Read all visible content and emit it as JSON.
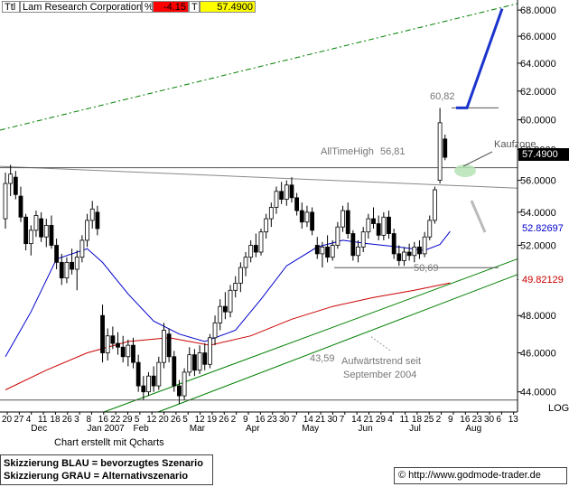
{
  "header": {
    "ticker": "Ttl",
    "name": "Lam Research Corporation",
    "pct_symbol": "%",
    "change": "-4.15",
    "t_symbol": "T",
    "last": "57.4900",
    "colors": {
      "change_bg": "#ff0000",
      "last_bg": "#ffff00"
    }
  },
  "footer": {
    "credit": "Chart erstellt mit Qcharts",
    "legend_line1": "Skizzierung BLAU = bevorzugtes Szenario",
    "legend_line2": "Skizzierung GRAU = Alternativszenario",
    "url": "© http://www.godmode-trader.de",
    "scale_mode": "LOG"
  },
  "price_tags": {
    "last": "57.4900",
    "ma_blue": "52.82697",
    "ma_red": "49.82129"
  },
  "chart_data": {
    "type": "candlestick",
    "title": "Lam Research Corporation",
    "y_scale": "log",
    "ylim": [
      43.0,
      68.5
    ],
    "y_ticks": [
      "68.0000",
      "66.0000",
      "64.0000",
      "62.0000",
      "60.0000",
      "58.0000",
      "56.0000",
      "54.0000",
      "52.0000",
      "50.0000",
      "48.0000",
      "46.0000",
      "44.0000"
    ],
    "x_day_labels": [
      "20",
      "27",
      "4",
      "11",
      "18",
      "26",
      "3",
      "8",
      "16",
      "22",
      "29",
      "5",
      "12",
      "20",
      "26",
      "5",
      "12",
      "19",
      "26",
      "2",
      "9",
      "16",
      "23",
      "30",
      "7",
      "14",
      "21",
      "30",
      "7",
      "14",
      "21",
      "29",
      "4",
      "11",
      "18",
      "25",
      "2",
      "9",
      "16",
      "23",
      "30",
      "6",
      "13"
    ],
    "x_month_labels": [
      "Dec",
      "Jan 2007",
      "Feb",
      "Mar",
      "Apr",
      "May",
      "Jun",
      "Jul",
      "Aug"
    ],
    "x_month_positions": [
      5,
      16,
      25,
      36,
      47,
      58,
      69,
      79,
      90
    ],
    "candles": [
      {
        "o": 53.6,
        "h": 56.5,
        "l": 53.0,
        "c": 55.8
      },
      {
        "o": 55.8,
        "h": 57.0,
        "l": 55.0,
        "c": 56.4
      },
      {
        "o": 56.2,
        "h": 56.6,
        "l": 54.8,
        "c": 55.1
      },
      {
        "o": 55.0,
        "h": 55.6,
        "l": 53.4,
        "c": 53.7
      },
      {
        "o": 53.7,
        "h": 53.9,
        "l": 51.7,
        "c": 52.1
      },
      {
        "o": 52.1,
        "h": 53.2,
        "l": 51.4,
        "c": 52.9
      },
      {
        "o": 52.9,
        "h": 54.1,
        "l": 52.5,
        "c": 53.8
      },
      {
        "o": 53.6,
        "h": 54.0,
        "l": 52.2,
        "c": 52.5
      },
      {
        "o": 52.5,
        "h": 53.6,
        "l": 51.9,
        "c": 53.2
      },
      {
        "o": 53.2,
        "h": 53.8,
        "l": 51.8,
        "c": 52.0
      },
      {
        "o": 52.0,
        "h": 52.4,
        "l": 50.6,
        "c": 51.0
      },
      {
        "o": 51.0,
        "h": 51.5,
        "l": 49.7,
        "c": 50.1
      },
      {
        "o": 50.1,
        "h": 51.3,
        "l": 49.8,
        "c": 51.0
      },
      {
        "o": 51.0,
        "h": 51.8,
        "l": 50.3,
        "c": 50.6
      },
      {
        "o": 50.6,
        "h": 51.7,
        "l": 49.4,
        "c": 51.3
      },
      {
        "o": 51.3,
        "h": 52.6,
        "l": 51.0,
        "c": 52.3
      },
      {
        "o": 52.3,
        "h": 53.9,
        "l": 51.9,
        "c": 53.5
      },
      {
        "o": 53.5,
        "h": 54.7,
        "l": 53.0,
        "c": 54.2
      },
      {
        "o": 54.0,
        "h": 54.4,
        "l": 52.6,
        "c": 53.0
      },
      {
        "o": 48.0,
        "h": 48.6,
        "l": 45.5,
        "c": 46.0
      },
      {
        "o": 46.0,
        "h": 47.3,
        "l": 45.6,
        "c": 46.9
      },
      {
        "o": 46.9,
        "h": 47.4,
        "l": 46.2,
        "c": 46.5
      },
      {
        "o": 46.5,
        "h": 47.1,
        "l": 45.9,
        "c": 46.3
      },
      {
        "o": 46.3,
        "h": 46.9,
        "l": 45.5,
        "c": 45.8
      },
      {
        "o": 45.8,
        "h": 46.7,
        "l": 45.3,
        "c": 46.4
      },
      {
        "o": 46.4,
        "h": 46.8,
        "l": 45.2,
        "c": 45.5
      },
      {
        "o": 45.5,
        "h": 45.9,
        "l": 44.0,
        "c": 44.3
      },
      {
        "o": 44.3,
        "h": 44.8,
        "l": 43.6,
        "c": 44.0
      },
      {
        "o": 44.0,
        "h": 45.0,
        "l": 43.8,
        "c": 44.8
      },
      {
        "o": 44.8,
        "h": 45.3,
        "l": 44.0,
        "c": 44.3
      },
      {
        "o": 44.3,
        "h": 45.8,
        "l": 44.1,
        "c": 45.5
      },
      {
        "o": 45.5,
        "h": 47.6,
        "l": 45.2,
        "c": 47.2
      },
      {
        "o": 47.0,
        "h": 47.3,
        "l": 45.5,
        "c": 45.8
      },
      {
        "o": 45.8,
        "h": 46.1,
        "l": 44.0,
        "c": 44.3
      },
      {
        "o": 44.3,
        "h": 44.6,
        "l": 43.4,
        "c": 43.8
      },
      {
        "o": 43.8,
        "h": 45.2,
        "l": 43.6,
        "c": 45.0
      },
      {
        "o": 45.0,
        "h": 46.3,
        "l": 44.8,
        "c": 45.9
      },
      {
        "o": 45.9,
        "h": 46.2,
        "l": 44.8,
        "c": 45.1
      },
      {
        "o": 45.1,
        "h": 46.4,
        "l": 44.9,
        "c": 46.0
      },
      {
        "o": 46.0,
        "h": 46.5,
        "l": 45.1,
        "c": 45.4
      },
      {
        "o": 45.4,
        "h": 47.0,
        "l": 45.2,
        "c": 46.8
      },
      {
        "o": 46.8,
        "h": 48.0,
        "l": 46.4,
        "c": 47.6
      },
      {
        "o": 47.6,
        "h": 48.9,
        "l": 47.2,
        "c": 48.5
      },
      {
        "o": 48.5,
        "h": 49.3,
        "l": 47.8,
        "c": 48.2
      },
      {
        "o": 48.2,
        "h": 49.7,
        "l": 47.9,
        "c": 49.4
      },
      {
        "o": 49.4,
        "h": 50.2,
        "l": 49.0,
        "c": 49.8
      },
      {
        "o": 49.8,
        "h": 51.0,
        "l": 49.3,
        "c": 50.7
      },
      {
        "o": 50.7,
        "h": 51.6,
        "l": 50.2,
        "c": 51.3
      },
      {
        "o": 51.3,
        "h": 52.3,
        "l": 51.0,
        "c": 52.0
      },
      {
        "o": 52.0,
        "h": 52.7,
        "l": 51.3,
        "c": 51.6
      },
      {
        "o": 51.6,
        "h": 53.0,
        "l": 51.4,
        "c": 52.8
      },
      {
        "o": 52.8,
        "h": 53.9,
        "l": 52.4,
        "c": 53.6
      },
      {
        "o": 53.6,
        "h": 54.6,
        "l": 53.1,
        "c": 54.3
      },
      {
        "o": 54.3,
        "h": 55.6,
        "l": 53.9,
        "c": 55.3
      },
      {
        "o": 55.3,
        "h": 55.9,
        "l": 54.5,
        "c": 54.8
      },
      {
        "o": 54.8,
        "h": 56.0,
        "l": 54.4,
        "c": 55.7
      },
      {
        "o": 55.7,
        "h": 56.2,
        "l": 54.6,
        "c": 54.9
      },
      {
        "o": 54.9,
        "h": 55.2,
        "l": 53.8,
        "c": 54.1
      },
      {
        "o": 54.1,
        "h": 54.6,
        "l": 53.0,
        "c": 53.4
      },
      {
        "o": 53.4,
        "h": 54.4,
        "l": 53.1,
        "c": 54.0
      },
      {
        "o": 54.0,
        "h": 54.3,
        "l": 52.6,
        "c": 52.9
      },
      {
        "o": 52.0,
        "h": 52.5,
        "l": 51.2,
        "c": 51.5
      },
      {
        "o": 51.5,
        "h": 52.2,
        "l": 50.7,
        "c": 51.9
      },
      {
        "o": 51.9,
        "h": 52.6,
        "l": 51.0,
        "c": 51.3
      },
      {
        "o": 51.3,
        "h": 52.3,
        "l": 51.1,
        "c": 52.0
      },
      {
        "o": 52.0,
        "h": 53.4,
        "l": 51.8,
        "c": 53.1
      },
      {
        "o": 53.1,
        "h": 54.4,
        "l": 52.8,
        "c": 54.1
      },
      {
        "o": 54.1,
        "h": 54.6,
        "l": 52.4,
        "c": 52.7
      },
      {
        "o": 52.7,
        "h": 52.9,
        "l": 51.1,
        "c": 51.4
      },
      {
        "o": 51.4,
        "h": 52.3,
        "l": 51.0,
        "c": 51.9
      },
      {
        "o": 51.9,
        "h": 53.1,
        "l": 51.6,
        "c": 52.8
      },
      {
        "o": 52.8,
        "h": 53.9,
        "l": 52.4,
        "c": 53.6
      },
      {
        "o": 53.6,
        "h": 54.3,
        "l": 53.0,
        "c": 53.3
      },
      {
        "o": 53.3,
        "h": 53.8,
        "l": 52.3,
        "c": 52.6
      },
      {
        "o": 52.6,
        "h": 54.0,
        "l": 52.3,
        "c": 53.7
      },
      {
        "o": 53.7,
        "h": 54.1,
        "l": 52.4,
        "c": 52.7
      },
      {
        "o": 52.7,
        "h": 53.0,
        "l": 51.2,
        "c": 51.5
      },
      {
        "o": 51.5,
        "h": 52.0,
        "l": 50.8,
        "c": 51.1
      },
      {
        "o": 51.1,
        "h": 51.9,
        "l": 50.8,
        "c": 51.6
      },
      {
        "o": 51.6,
        "h": 52.1,
        "l": 51.1,
        "c": 51.4
      },
      {
        "o": 51.4,
        "h": 52.2,
        "l": 51.0,
        "c": 51.9
      },
      {
        "o": 51.9,
        "h": 52.3,
        "l": 51.2,
        "c": 51.5
      },
      {
        "o": 51.5,
        "h": 52.8,
        "l": 51.3,
        "c": 52.5
      },
      {
        "o": 52.5,
        "h": 53.8,
        "l": 52.3,
        "c": 53.5
      },
      {
        "o": 53.5,
        "h": 55.6,
        "l": 53.3,
        "c": 55.4
      },
      {
        "o": 56.0,
        "h": 60.82,
        "l": 55.8,
        "c": 59.8
      },
      {
        "o": 58.7,
        "h": 59.0,
        "l": 57.3,
        "c": 57.49
      }
    ],
    "ma_blue": {
      "name": "",
      "last_label": "52.82697",
      "points": [
        [
          0,
          45.8
        ],
        [
          5,
          48.2
        ],
        [
          10,
          51.2
        ],
        [
          16,
          51.8
        ],
        [
          19,
          51.0
        ],
        [
          24,
          49.2
        ],
        [
          29,
          47.7
        ],
        [
          34,
          47.0
        ],
        [
          39,
          46.6
        ],
        [
          45,
          47.2
        ],
        [
          50,
          48.9
        ],
        [
          55,
          50.8
        ],
        [
          61,
          51.9
        ],
        [
          66,
          52.3
        ],
        [
          71,
          52.1
        ],
        [
          77,
          51.9
        ],
        [
          82,
          51.7
        ],
        [
          85,
          52.05
        ],
        [
          87,
          52.83
        ]
      ]
    },
    "ma_red": {
      "name": "",
      "last_label": "49.82129",
      "points": [
        [
          0,
          44.1
        ],
        [
          8,
          45.1
        ],
        [
          16,
          46.0
        ],
        [
          24,
          46.6
        ],
        [
          32,
          46.8
        ],
        [
          40,
          46.4
        ],
        [
          48,
          46.9
        ],
        [
          56,
          47.8
        ],
        [
          64,
          48.5
        ],
        [
          72,
          49.0
        ],
        [
          80,
          49.4
        ],
        [
          87,
          49.82
        ]
      ]
    },
    "horizontal_levels": [
      {
        "label": "AllTimeHigh",
        "value_label": "56,81",
        "value": 56.81
      },
      {
        "label": "",
        "value_label": "50,69",
        "value": 50.69
      },
      {
        "label": "",
        "value_label": "43,59",
        "value": 43.59
      },
      {
        "label": "",
        "value_label": "60,82",
        "value": 60.82
      }
    ],
    "annotations": [
      {
        "text": "Kaufzone"
      },
      {
        "text": "Aufwärtstrend seit"
      },
      {
        "text": "September 2004"
      }
    ]
  }
}
